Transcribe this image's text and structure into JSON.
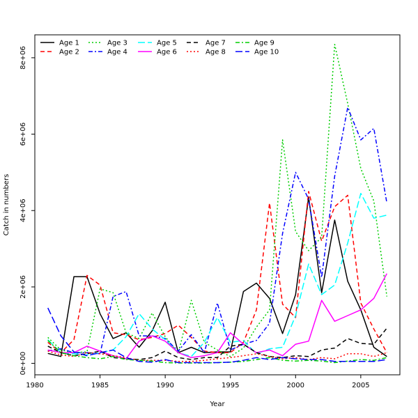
{
  "chart_data": {
    "type": "line",
    "title": "",
    "xlabel": "Year",
    "ylabel": "Catch in numbers",
    "xlim": [
      1980,
      2008
    ],
    "ylim": [
      -300000,
      8600000
    ],
    "x_ticks": [
      1980,
      1985,
      1990,
      1995,
      2000,
      2005
    ],
    "x_tick_labels": [
      "1980",
      "1985",
      "1990",
      "1995",
      "2000",
      "2005"
    ],
    "y_ticks": [
      0,
      2000000,
      4000000,
      6000000,
      8000000
    ],
    "y_tick_labels": [
      "0e+00",
      "2e+06",
      "4e+06",
      "6e+06",
      "8e+06"
    ],
    "grid": false,
    "legend_position": "top-left",
    "x": [
      1981,
      1982,
      1983,
      1984,
      1985,
      1986,
      1987,
      1988,
      1989,
      1990,
      1991,
      1992,
      1993,
      1994,
      1995,
      1996,
      1997,
      1998,
      1999,
      2000,
      2001,
      2002,
      2003,
      2004,
      2005,
      2006,
      2007
    ],
    "series": [
      {
        "name": "Age 1",
        "color": "#000000",
        "dash": "solid",
        "values": [
          260000,
          180000,
          2270000,
          2270000,
          1300000,
          650000,
          800000,
          420000,
          850000,
          1600000,
          280000,
          420000,
          280000,
          300000,
          300000,
          1880000,
          2100000,
          1700000,
          780000,
          1800000,
          4350000,
          1850000,
          3750000,
          2150000,
          1400000,
          420000,
          180000
        ]
      },
      {
        "name": "Age 2",
        "color": "#ff0000",
        "dash": "dashed",
        "values": [
          550000,
          280000,
          620000,
          2300000,
          2050000,
          800000,
          750000,
          620000,
          680000,
          780000,
          1000000,
          680000,
          320000,
          280000,
          280000,
          550000,
          1400000,
          4200000,
          1550000,
          1200000,
          4500000,
          3200000,
          4100000,
          4400000,
          1580000,
          900000,
          280000
        ]
      },
      {
        "name": "Age 3",
        "color": "#00cd00",
        "dash": "dotted",
        "values": [
          680000,
          350000,
          280000,
          300000,
          1950000,
          1850000,
          800000,
          650000,
          1320000,
          700000,
          260000,
          1650000,
          550000,
          350000,
          180000,
          400000,
          950000,
          1400000,
          5850000,
          3450000,
          2950000,
          3300000,
          8350000,
          6800000,
          5100000,
          4250000,
          1750000
        ]
      },
      {
        "name": "Age 4",
        "color": "#0000ff",
        "dash": "dashdot",
        "values": [
          330000,
          380000,
          280000,
          280000,
          250000,
          1750000,
          1880000,
          720000,
          720000,
          650000,
          320000,
          750000,
          280000,
          1580000,
          350000,
          500000,
          600000,
          1050000,
          3400000,
          5000000,
          4300000,
          2250000,
          4900000,
          6700000,
          5850000,
          6150000,
          4200000
        ]
      },
      {
        "name": "Age 5",
        "color": "#00ffff",
        "dash": "longdash",
        "values": [
          620000,
          280000,
          250000,
          220000,
          280000,
          350000,
          700000,
          1300000,
          900000,
          620000,
          280000,
          180000,
          550000,
          1200000,
          550000,
          600000,
          250000,
          380000,
          420000,
          1250000,
          2600000,
          1800000,
          2050000,
          3150000,
          4450000,
          3800000,
          3880000
        ]
      },
      {
        "name": "Age 6",
        "color": "#ff00ff",
        "dash": "solid",
        "values": [
          350000,
          280000,
          280000,
          450000,
          320000,
          200000,
          120000,
          580000,
          720000,
          580000,
          280000,
          150000,
          200000,
          280000,
          800000,
          500000,
          280000,
          350000,
          200000,
          500000,
          580000,
          1650000,
          1100000,
          1250000,
          1400000,
          1700000,
          2350000
        ]
      },
      {
        "name": "Age 7",
        "color": "#000000",
        "dash": "dashed",
        "values": [
          450000,
          280000,
          200000,
          250000,
          320000,
          150000,
          120000,
          100000,
          150000,
          320000,
          150000,
          100000,
          150000,
          150000,
          450000,
          500000,
          280000,
          180000,
          150000,
          200000,
          180000,
          350000,
          400000,
          650000,
          520000,
          500000,
          920000
        ]
      },
      {
        "name": "Age 8",
        "color": "#ff0000",
        "dash": "dotted",
        "values": [
          320000,
          220000,
          180000,
          280000,
          250000,
          200000,
          150000,
          80000,
          80000,
          80000,
          50000,
          50000,
          80000,
          120000,
          150000,
          200000,
          250000,
          180000,
          120000,
          150000,
          100000,
          150000,
          120000,
          250000,
          250000,
          180000,
          280000
        ]
      },
      {
        "name": "Age 9",
        "color": "#00cd00",
        "dash": "dashdot",
        "values": [
          600000,
          280000,
          200000,
          150000,
          120000,
          180000,
          100000,
          80000,
          60000,
          20000,
          10000,
          10000,
          10000,
          20000,
          30000,
          50000,
          100000,
          150000,
          80000,
          60000,
          80000,
          60000,
          20000,
          60000,
          100000,
          80000,
          150000
        ]
      },
      {
        "name": "Age 10",
        "color": "#0000ff",
        "dash": "longdash",
        "values": [
          1450000,
          720000,
          300000,
          200000,
          280000,
          350000,
          150000,
          50000,
          30000,
          100000,
          20000,
          20000,
          20000,
          20000,
          30000,
          80000,
          150000,
          100000,
          150000,
          120000,
          100000,
          100000,
          50000,
          50000,
          50000,
          50000,
          100000
        ]
      }
    ]
  }
}
